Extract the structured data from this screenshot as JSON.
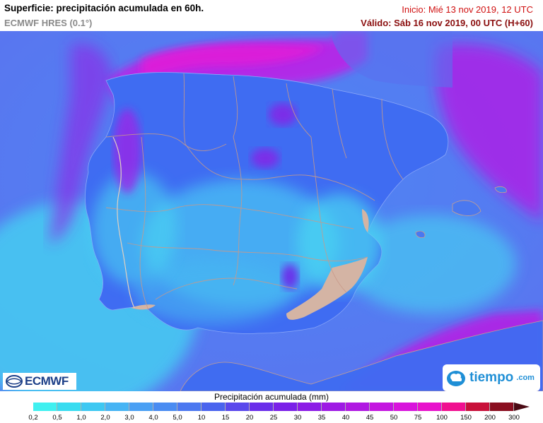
{
  "header": {
    "title": "Superficie: precipitación acumulada en 60h.",
    "model": "ECMWF HRES (0.1°)",
    "init": "Inicio: Mié 13 nov 2019, 12 UTC",
    "valid": "Válido: Sáb 16 nov 2019, 00 UTC (H+60)"
  },
  "map": {
    "region": "Iberian Peninsula",
    "background_color": "#3f7cf0",
    "sea_color": "#5a8af5",
    "border_color": "#c8a090",
    "heavy_color": "#b020e0",
    "light_color": "#4ad8f0"
  },
  "logos": {
    "ecmwf": "ECMWF",
    "tiempo": "tiempo",
    "tiempo_domain": ".com"
  },
  "legend": {
    "title": "Precipitación acumulada (mm)",
    "ticks": [
      "0,2",
      "0,5",
      "1,0",
      "2,0",
      "3,0",
      "4,0",
      "5,0",
      "10",
      "15",
      "20",
      "25",
      "30",
      "35",
      "40",
      "45",
      "50",
      "75",
      "100",
      "150",
      "200",
      "300"
    ],
    "colors": [
      "#40f0f0",
      "#38dcf0",
      "#3ec8f2",
      "#46b4f4",
      "#4aa0f4",
      "#4a8cf2",
      "#4c78f0",
      "#4a64ee",
      "#5a48ec",
      "#6a2eea",
      "#7a20e8",
      "#8c1ce6",
      "#9e1ae4",
      "#b018e2",
      "#c416e0",
      "#d814dc",
      "#e812cc",
      "#f01090",
      "#c8103a",
      "#8a0e20"
    ],
    "unit": "mm"
  }
}
